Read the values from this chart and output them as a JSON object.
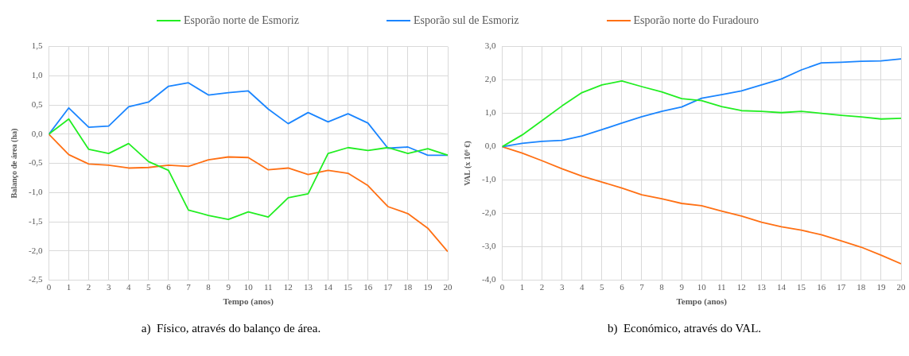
{
  "chart_data": [
    {
      "type": "line",
      "xlabel": "Tempo (anos)",
      "ylabel": "Balanço de área (ha)",
      "legend": "top",
      "grid": true,
      "x": [
        0,
        1,
        2,
        3,
        4,
        5,
        6,
        7,
        8,
        9,
        10,
        11,
        12,
        13,
        14,
        15,
        16,
        17,
        18,
        19,
        20
      ],
      "xlim": [
        0,
        20
      ],
      "xticks": [
        0,
        1,
        2,
        3,
        4,
        5,
        6,
        7,
        8,
        9,
        10,
        11,
        12,
        13,
        14,
        15,
        16,
        17,
        18,
        19,
        20
      ],
      "ylim": [
        -2.5,
        1.5
      ],
      "yticks": [
        {
          "value": -2.5,
          "label": "-2,5"
        },
        {
          "value": -2,
          "label": "-2,0"
        },
        {
          "value": -1.5,
          "label": "-1,5"
        },
        {
          "value": -1,
          "label": "-1,0"
        },
        {
          "value": -0.5,
          "label": "-0,5"
        },
        {
          "value": 0,
          "label": "0,0"
        },
        {
          "value": 0.5,
          "label": "0,5"
        },
        {
          "value": 1,
          "label": "1,0"
        },
        {
          "value": 1.5,
          "label": "1,5"
        }
      ],
      "annotations": [
        "a)  Físico, através do balanço de área."
      ],
      "series": [
        {
          "name": "Esporão norte de Esmoriz",
          "color": "#22ee22",
          "values": [
            0,
            0.26,
            -0.26,
            -0.33,
            -0.16,
            -0.47,
            -0.62,
            -1.3,
            -1.39,
            -1.46,
            -1.33,
            -1.42,
            -1.09,
            -1.02,
            -0.33,
            -0.23,
            -0.28,
            -0.23,
            -0.33,
            -0.25,
            -0.36
          ]
        },
        {
          "name": "Esporão sul de Esmoriz",
          "color": "#1a85ff",
          "values": [
            0,
            0.45,
            0.12,
            0.14,
            0.47,
            0.55,
            0.82,
            0.88,
            0.67,
            0.71,
            0.74,
            0.43,
            0.18,
            0.37,
            0.21,
            0.35,
            0.19,
            -0.24,
            -0.22,
            -0.36,
            -0.36
          ]
        },
        {
          "name": "Esporão norte do Furadouro",
          "color": "#ff7014",
          "values": [
            0,
            -0.35,
            -0.51,
            -0.53,
            -0.58,
            -0.57,
            -0.53,
            -0.55,
            -0.44,
            -0.39,
            -0.4,
            -0.61,
            -0.58,
            -0.69,
            -0.62,
            -0.67,
            -0.88,
            -1.24,
            -1.36,
            -1.61,
            -2.01
          ]
        }
      ]
    },
    {
      "type": "line",
      "xlabel": "Tempo (anos)",
      "ylabel": "VAL (x 10⁶ €)",
      "grid": true,
      "x": [
        0,
        1,
        2,
        3,
        4,
        5,
        6,
        7,
        8,
        9,
        10,
        11,
        12,
        13,
        14,
        15,
        16,
        17,
        18,
        19,
        20
      ],
      "xlim": [
        0,
        20
      ],
      "xticks": [
        0,
        1,
        2,
        3,
        4,
        5,
        6,
        7,
        8,
        9,
        10,
        11,
        12,
        13,
        14,
        15,
        16,
        17,
        18,
        19,
        20
      ],
      "ylim": [
        -4,
        3
      ],
      "yticks": [
        {
          "value": -4,
          "label": "-4,0"
        },
        {
          "value": -3,
          "label": "-3,0"
        },
        {
          "value": -2,
          "label": "-2,0"
        },
        {
          "value": -1,
          "label": "-1,0"
        },
        {
          "value": 0,
          "label": "0,0"
        },
        {
          "value": 1,
          "label": "1,0"
        },
        {
          "value": 2,
          "label": "2,0"
        },
        {
          "value": 3,
          "label": "3,0"
        }
      ],
      "annotations": [
        "b)  Económico, através do VAL."
      ],
      "series": [
        {
          "color": "#22ee22",
          "values": [
            0,
            0.35,
            0.78,
            1.22,
            1.62,
            1.85,
            1.97,
            1.8,
            1.64,
            1.44,
            1.38,
            1.2,
            1.08,
            1.06,
            1.02,
            1.06,
            1.0,
            0.94,
            0.89,
            0.83,
            0.85
          ]
        },
        {
          "color": "#1a85ff",
          "values": [
            0,
            0.1,
            0.16,
            0.19,
            0.32,
            0.51,
            0.71,
            0.9,
            1.06,
            1.19,
            1.45,
            1.56,
            1.67,
            1.85,
            2.03,
            2.3,
            2.51,
            2.53,
            2.56,
            2.57,
            2.63
          ]
        },
        {
          "color": "#ff7014",
          "values": [
            0,
            -0.19,
            -0.42,
            -0.66,
            -0.88,
            -1.06,
            -1.24,
            -1.44,
            -1.56,
            -1.7,
            -1.77,
            -1.93,
            -2.08,
            -2.26,
            -2.4,
            -2.5,
            -2.64,
            -2.82,
            -3.01,
            -3.25,
            -3.51
          ]
        }
      ]
    }
  ]
}
